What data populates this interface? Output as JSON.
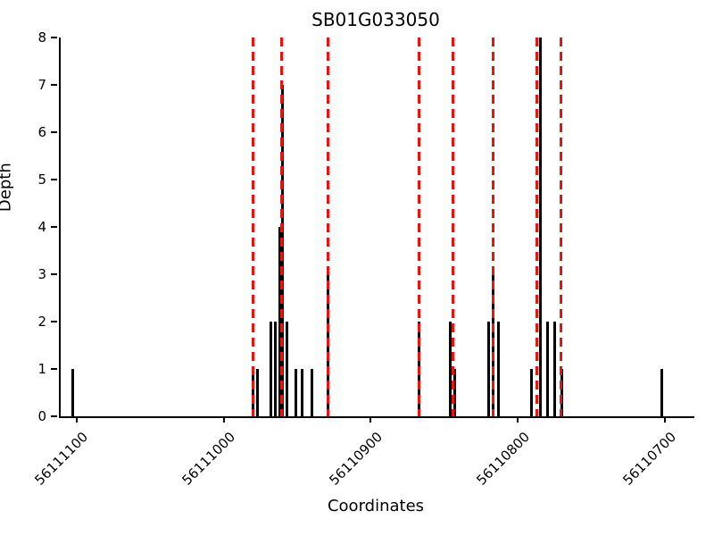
{
  "chart_data": {
    "type": "bar",
    "title": "SB01G033050",
    "xlabel": "Coordinates",
    "ylabel": "Depth",
    "x_axis_reversed": true,
    "x_range_left": 56111112,
    "x_range_right": 56110681,
    "ylim": [
      0,
      8
    ],
    "x_ticks": [
      {
        "value": 56111100,
        "label": "56111100"
      },
      {
        "value": 56111000,
        "label": "56111000"
      },
      {
        "value": 56110900,
        "label": "56110900"
      },
      {
        "value": 56110800,
        "label": "56110800"
      },
      {
        "value": 56110700,
        "label": "56110700"
      }
    ],
    "y_ticks": [
      {
        "value": 0,
        "label": "0"
      },
      {
        "value": 1,
        "label": "1"
      },
      {
        "value": 2,
        "label": "2"
      },
      {
        "value": 3,
        "label": "3"
      },
      {
        "value": 4,
        "label": "4"
      },
      {
        "value": 5,
        "label": "5"
      },
      {
        "value": 6,
        "label": "6"
      },
      {
        "value": 7,
        "label": "7"
      },
      {
        "value": 8,
        "label": "8"
      }
    ],
    "bars": [
      {
        "x": 56111104,
        "depth": 1
      },
      {
        "x": 56110981,
        "depth": 1
      },
      {
        "x": 56110978,
        "depth": 1
      },
      {
        "x": 56110969,
        "depth": 2
      },
      {
        "x": 56110966,
        "depth": 2
      },
      {
        "x": 56110963,
        "depth": 4
      },
      {
        "x": 56110961,
        "depth": 7
      },
      {
        "x": 56110958,
        "depth": 2
      },
      {
        "x": 56110952,
        "depth": 1
      },
      {
        "x": 56110948,
        "depth": 1
      },
      {
        "x": 56110941,
        "depth": 1
      },
      {
        "x": 56110930,
        "depth": 3
      },
      {
        "x": 56110868,
        "depth": 2
      },
      {
        "x": 56110847,
        "depth": 2
      },
      {
        "x": 56110844,
        "depth": 1
      },
      {
        "x": 56110821,
        "depth": 2
      },
      {
        "x": 56110818,
        "depth": 3
      },
      {
        "x": 56110814,
        "depth": 2
      },
      {
        "x": 56110792,
        "depth": 1
      },
      {
        "x": 56110786,
        "depth": 8
      },
      {
        "x": 56110781,
        "depth": 2
      },
      {
        "x": 56110776,
        "depth": 2
      },
      {
        "x": 56110771,
        "depth": 1
      },
      {
        "x": 56110703,
        "depth": 1
      }
    ],
    "marker_lines": [
      56110981,
      56110962,
      56110930,
      56110868,
      56110845,
      56110818,
      56110788,
      56110772
    ],
    "bar_color": "#000000",
    "marker_color": "#ee1111",
    "axis_color": "#000000",
    "legend": "none",
    "grid": false
  }
}
